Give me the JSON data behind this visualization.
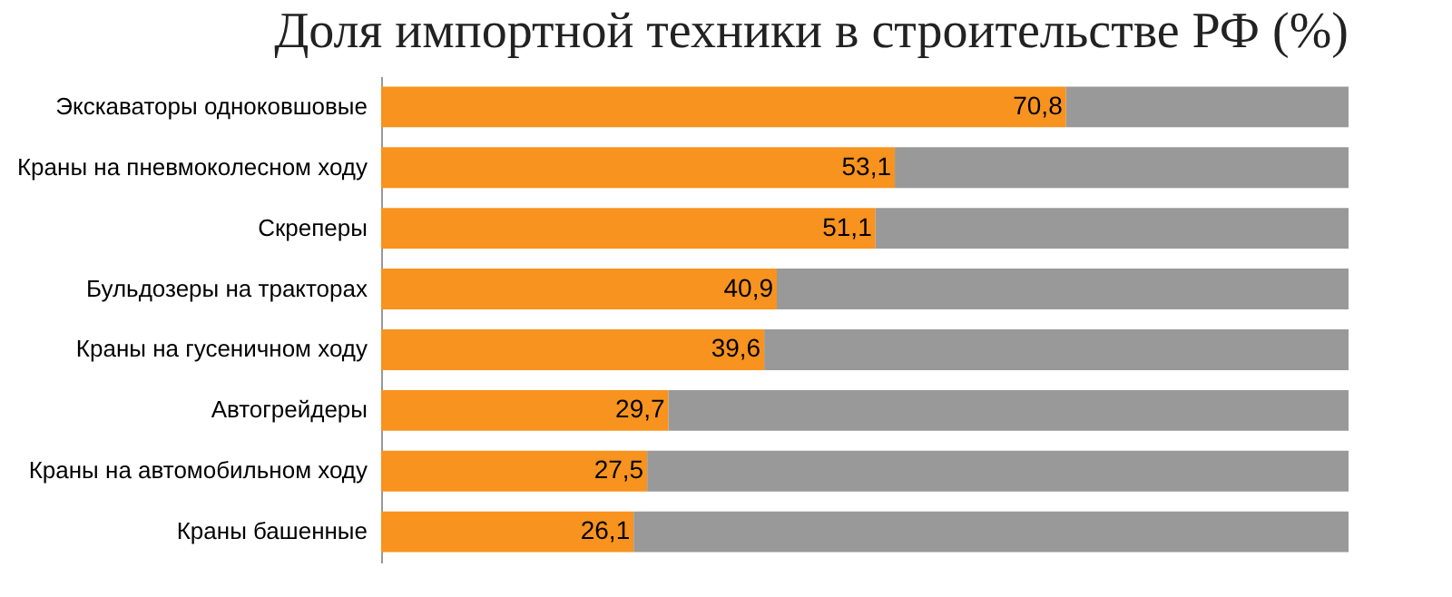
{
  "chart_data": {
    "type": "bar",
    "orientation": "horizontal",
    "stacked": true,
    "title": "Доля импортной техники в строительстве РФ (%)",
    "categories": [
      "Экскаваторы одноковшовые",
      "Краны на пневмоколесном ходу",
      "Скреперы",
      "Бульдозеры на тракторах",
      "Краны на гусеничном ходу",
      "Автогрейдеры",
      "Краны на автомобильном ходу",
      "Краны башенные"
    ],
    "series": [
      {
        "color": "#f7931e",
        "values": [
          70.8,
          53.1,
          51.1,
          40.9,
          39.6,
          29.7,
          27.5,
          26.1
        ],
        "value_labels": [
          "70,8",
          "53,1",
          "51,1",
          "40,9",
          "39,6",
          "29,7",
          "27,5",
          "26,1"
        ]
      },
      {
        "color": "#999999",
        "values": [
          29.2,
          46.9,
          48.9,
          59.1,
          60.4,
          70.3,
          72.5,
          73.9
        ]
      }
    ],
    "xlim": [
      0,
      100
    ],
    "tick_labels": "y",
    "legend": false
  }
}
